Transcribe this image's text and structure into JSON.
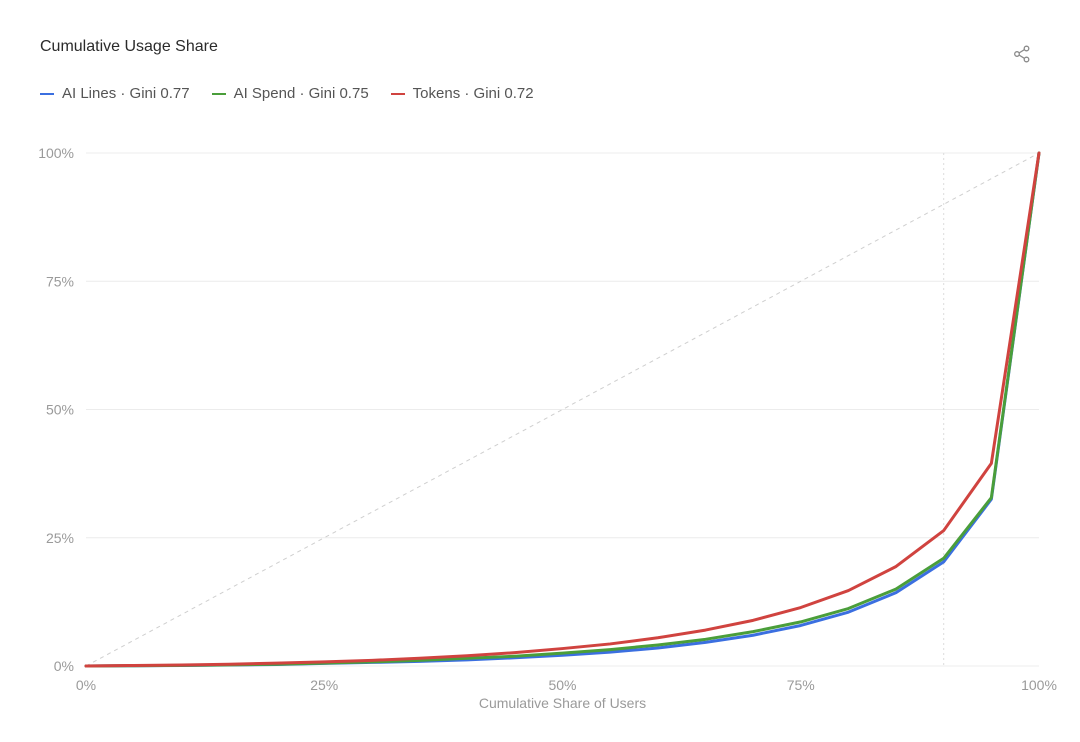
{
  "header": {
    "title": "Cumulative Usage Share",
    "share_icon": "share-icon"
  },
  "colors": {
    "blue": "#3b6fe0",
    "green": "#4a9e3a",
    "red": "#d0433f",
    "grid": "#ececec",
    "equality": "#cfcfcf"
  },
  "chart_data": {
    "type": "line",
    "title": "Cumulative Usage Share",
    "xlabel": "Cumulative Share of Users",
    "ylabel": "",
    "xlim": [
      0,
      100
    ],
    "ylim": [
      0,
      100
    ],
    "x_ticks": [
      "0%",
      "25%",
      "50%",
      "75%",
      "100%"
    ],
    "y_ticks": [
      "0%",
      "25%",
      "50%",
      "75%",
      "100%"
    ],
    "grid": true,
    "legend_position": "top-left",
    "reference_line": {
      "type": "equality-diagonal",
      "style": "dashed"
    },
    "vertical_marker_x": 90,
    "x": [
      0,
      5,
      10,
      15,
      20,
      25,
      30,
      35,
      40,
      45,
      50,
      55,
      60,
      65,
      70,
      75,
      80,
      85,
      90,
      95,
      100
    ],
    "series": [
      {
        "name": "AI Lines · Gini 0.77",
        "color": "#3b6fe0",
        "values": [
          0,
          0.05,
          0.1,
          0.2,
          0.3,
          0.5,
          0.7,
          0.9,
          1.2,
          1.6,
          2.1,
          2.7,
          3.5,
          4.6,
          6.0,
          7.9,
          10.5,
          14.3,
          20.3,
          32.5,
          100
        ]
      },
      {
        "name": "AI Spend · Gini 0.75",
        "color": "#4a9e3a",
        "values": [
          0,
          0.05,
          0.12,
          0.22,
          0.35,
          0.55,
          0.8,
          1.1,
          1.5,
          1.9,
          2.5,
          3.2,
          4.1,
          5.2,
          6.7,
          8.6,
          11.2,
          15.0,
          21.0,
          32.8,
          100
        ]
      },
      {
        "name": "Tokens · Gini 0.72",
        "color": "#d0433f",
        "values": [
          0,
          0.1,
          0.2,
          0.35,
          0.55,
          0.8,
          1.1,
          1.5,
          2.0,
          2.6,
          3.4,
          4.3,
          5.5,
          7.0,
          8.9,
          11.4,
          14.7,
          19.4,
          26.4,
          39.5,
          100
        ]
      }
    ]
  }
}
